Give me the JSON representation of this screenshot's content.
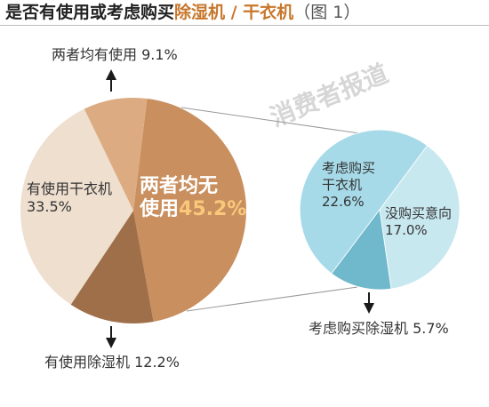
{
  "title": {
    "part1": "是否有使用或考虑购买",
    "part2": "除湿机 / 干衣机",
    "part3": "（图 1）"
  },
  "watermark": "消费者报道",
  "colors": {
    "title_text": "#222222",
    "title_accent": "#c8772c",
    "title_suffix": "#555555",
    "label_text": "#333333",
    "inner_label": "#ffffff",
    "inner_value": "#f9c87a",
    "connector": "#9a9a9a",
    "arrow": "#1a1a1a",
    "watermark": "#d6d6d6"
  },
  "chart_data": [
    {
      "type": "pie",
      "slices": [
        {
          "label": "两者均无\n使用",
          "value": 45.2,
          "value_label": "45.2%",
          "color": "#c98f5e"
        },
        {
          "label": "有使用除湿机",
          "value": 12.2,
          "value_label": "12.2%",
          "color": "#9f6f49"
        },
        {
          "label": "有使用干衣机",
          "value": 33.5,
          "value_label": "33.5%",
          "color": "#eedfcf"
        },
        {
          "label": "两者均有使用",
          "value": 9.1,
          "value_label": "9.1%",
          "color": "#ddab81"
        }
      ]
    },
    {
      "type": "pie",
      "slices": [
        {
          "label": "考虑购买\n干衣机",
          "value": 22.6,
          "value_label": "22.6%",
          "color": "#a7dae8"
        },
        {
          "label": "没购买意向",
          "value": 17.0,
          "value_label": "17.0%",
          "color": "#c8e8f0"
        },
        {
          "label": "考虑购买除湿机",
          "value": 5.7,
          "value_label": "5.7%",
          "color": "#70b8cc"
        }
      ]
    }
  ]
}
